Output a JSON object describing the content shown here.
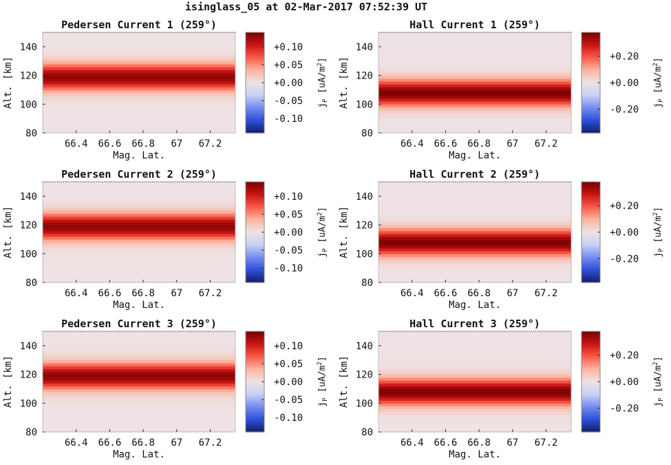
{
  "figure": {
    "title": "isinglass_05 at 02-Mar-2017 07:52:39 UT"
  },
  "chart_data": [
    {
      "type": "heatmap",
      "title": "Pedersen Current 1 (259°)",
      "xlabel": "Mag. Lat.",
      "ylabel": "Alt. [km]",
      "xlim": [
        66.2,
        67.35
      ],
      "ylim": [
        80,
        150
      ],
      "xticks": [
        "66.4",
        "66.6",
        "66.8",
        "67",
        "67.2"
      ],
      "yticks": [
        "80",
        "100",
        "120",
        "140"
      ],
      "profile": {
        "peak_altitude_km": 119,
        "width_km": 9,
        "peak_value": 0.13
      },
      "colorbar": {
        "label": "j_P [uA/m^2]",
        "label_main": "j",
        "label_sub": "P",
        "label_unit": " [uA/m",
        "label_sup": "2",
        "label_end": "]",
        "range": [
          -0.14,
          0.14
        ],
        "ticks": [
          "+0.10",
          "+0.05",
          "+0.00",
          "-0.05",
          "-0.10"
        ],
        "tick_values": [
          0.1,
          0.05,
          0.0,
          -0.05,
          -0.1
        ]
      }
    },
    {
      "type": "heatmap",
      "title": "Hall Current 1 (259°)",
      "xlabel": "Mag. Lat.",
      "ylabel": "Alt. [km]",
      "xlim": [
        66.2,
        67.35
      ],
      "ylim": [
        80,
        150
      ],
      "xticks": [
        "66.4",
        "66.6",
        "66.8",
        "67",
        "67.2"
      ],
      "yticks": [
        "80",
        "100",
        "120",
        "140"
      ],
      "profile": {
        "peak_altitude_km": 108,
        "width_km": 9,
        "peak_value": 0.37
      },
      "colorbar": {
        "label": "j_P [uA/m^2]",
        "label_main": "j",
        "label_sub": "P",
        "label_unit": " [uA/m",
        "label_sup": "2",
        "label_end": "]",
        "range": [
          -0.38,
          0.38
        ],
        "ticks": [
          "+0.20",
          "+0.00",
          "-0.20"
        ],
        "tick_values": [
          0.2,
          0.0,
          -0.2
        ]
      }
    },
    {
      "type": "heatmap",
      "title": "Pedersen Current 2 (259°)",
      "xlabel": "Mag. Lat.",
      "ylabel": "Alt. [km]",
      "xlim": [
        66.2,
        67.35
      ],
      "ylim": [
        80,
        150
      ],
      "xticks": [
        "66.4",
        "66.6",
        "66.8",
        "67",
        "67.2"
      ],
      "yticks": [
        "80",
        "100",
        "120",
        "140"
      ],
      "profile": {
        "peak_altitude_km": 119,
        "width_km": 9,
        "peak_value": 0.13
      },
      "colorbar": {
        "label": "j_P [uA/m^2]",
        "label_main": "j",
        "label_sub": "P",
        "label_unit": " [uA/m",
        "label_sup": "2",
        "label_end": "]",
        "range": [
          -0.14,
          0.14
        ],
        "ticks": [
          "+0.10",
          "+0.05",
          "+0.00",
          "-0.05",
          "-0.10"
        ],
        "tick_values": [
          0.1,
          0.05,
          0.0,
          -0.05,
          -0.1
        ]
      }
    },
    {
      "type": "heatmap",
      "title": "Hall Current 2 (259°)",
      "xlabel": "Mag. Lat.",
      "ylabel": "Alt. [km]",
      "xlim": [
        66.2,
        67.35
      ],
      "ylim": [
        80,
        150
      ],
      "xticks": [
        "66.4",
        "66.6",
        "66.8",
        "67",
        "67.2"
      ],
      "yticks": [
        "80",
        "100",
        "120",
        "140"
      ],
      "profile": {
        "peak_altitude_km": 108,
        "width_km": 9,
        "peak_value": 0.37
      },
      "colorbar": {
        "label": "j_P [uA/m^2]",
        "label_main": "j",
        "label_sub": "P",
        "label_unit": " [uA/m",
        "label_sup": "2",
        "label_end": "]",
        "range": [
          -0.38,
          0.38
        ],
        "ticks": [
          "+0.20",
          "+0.00",
          "-0.20"
        ],
        "tick_values": [
          0.2,
          0.0,
          -0.2
        ]
      }
    },
    {
      "type": "heatmap",
      "title": "Pedersen Current 3 (259°)",
      "xlabel": "Mag. Lat.",
      "ylabel": "Alt. [km]",
      "xlim": [
        66.2,
        67.35
      ],
      "ylim": [
        80,
        150
      ],
      "xticks": [
        "66.4",
        "66.6",
        "66.8",
        "67",
        "67.2"
      ],
      "yticks": [
        "80",
        "100",
        "120",
        "140"
      ],
      "profile": {
        "peak_altitude_km": 119,
        "width_km": 9,
        "peak_value": 0.13
      },
      "colorbar": {
        "label": "j_P [uA/m^2]",
        "label_main": "j",
        "label_sub": "P",
        "label_unit": " [uA/m",
        "label_sup": "2",
        "label_end": "]",
        "range": [
          -0.14,
          0.14
        ],
        "ticks": [
          "+0.10",
          "+0.05",
          "+0.00",
          "-0.05",
          "-0.10"
        ],
        "tick_values": [
          0.1,
          0.05,
          0.0,
          -0.05,
          -0.1
        ]
      }
    },
    {
      "type": "heatmap",
      "title": "Hall Current 3 (259°)",
      "xlabel": "Mag. Lat.",
      "ylabel": "Alt. [km]",
      "xlim": [
        66.2,
        67.35
      ],
      "ylim": [
        80,
        150
      ],
      "xticks": [
        "66.4",
        "66.6",
        "66.8",
        "67",
        "67.2"
      ],
      "yticks": [
        "80",
        "100",
        "120",
        "140"
      ],
      "profile": {
        "peak_altitude_km": 108,
        "width_km": 9,
        "peak_value": 0.37
      },
      "colorbar": {
        "label": "j_P [uA/m^2]",
        "label_main": "j",
        "label_sub": "P",
        "label_unit": " [uA/m",
        "label_sup": "2",
        "label_end": "]",
        "range": [
          -0.38,
          0.38
        ],
        "ticks": [
          "+0.20",
          "+0.00",
          "-0.20"
        ],
        "tick_values": [
          0.2,
          0.0,
          -0.2
        ]
      }
    }
  ]
}
